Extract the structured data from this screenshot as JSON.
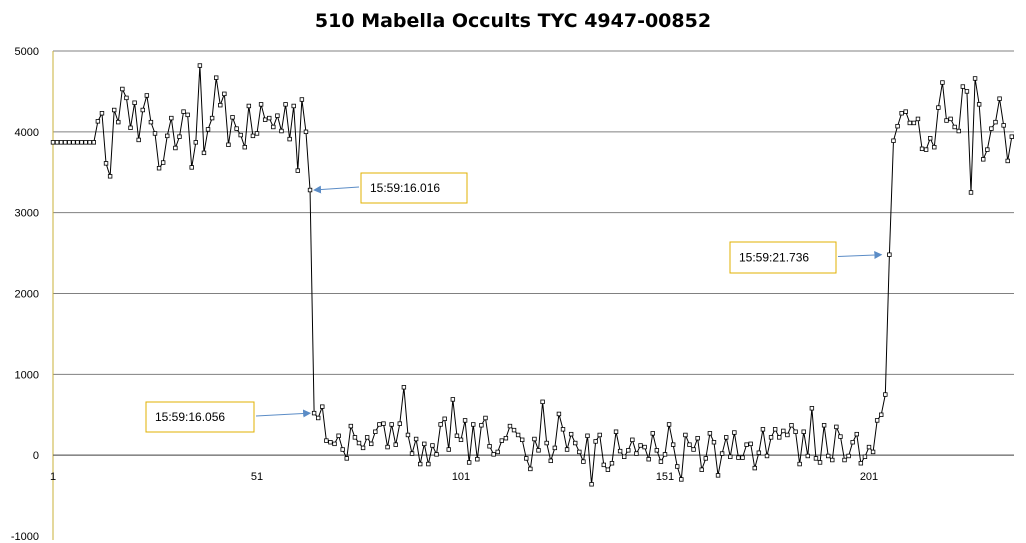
{
  "chart_data": {
    "type": "line",
    "title": "510 Mabella Occults TYC 4947-00852",
    "xlabel": "",
    "ylabel": "",
    "xlim": [
      1,
      236
    ],
    "ylim": [
      -1000,
      5000
    ],
    "xticks": [
      1,
      51,
      101,
      151,
      201
    ],
    "xtick_labels": [
      "1",
      "51",
      "101",
      "151",
      "201"
    ],
    "yticks": [
      -1000,
      0,
      1000,
      2000,
      3000,
      4000,
      5000
    ],
    "ytick_labels": [
      "-1000",
      "0",
      "1000",
      "2000",
      "3000",
      "4000",
      "5000"
    ],
    "grid": "horizontal",
    "colors": {
      "line": "#000000",
      "gridline": "#808080",
      "axis": "#c9b03a",
      "callout_border": "#e0b000",
      "arrow": "#5b8cc6"
    },
    "series": [
      {
        "x": [
          1,
          2,
          3,
          4,
          5,
          6,
          7,
          8,
          9,
          10,
          11,
          12,
          13,
          14,
          15,
          16,
          17,
          18,
          19,
          20,
          21,
          22,
          23,
          24,
          25,
          26,
          27,
          28,
          29,
          30,
          31,
          32,
          33,
          34,
          35,
          36,
          37,
          38,
          39,
          40,
          41,
          42,
          43,
          44,
          45,
          46,
          47,
          48,
          49,
          50,
          51,
          52,
          53,
          54,
          55,
          56,
          57,
          58,
          59,
          60,
          61,
          62,
          63,
          64,
          65,
          66,
          67,
          68,
          69,
          70,
          71,
          72,
          73,
          74,
          75,
          76,
          77,
          78,
          79,
          80,
          81,
          82,
          83,
          84,
          85,
          86,
          87,
          88,
          89,
          90,
          91,
          92,
          93,
          94,
          95,
          96,
          97,
          98,
          99,
          100,
          101,
          102,
          103,
          104,
          105,
          106,
          107,
          108,
          109,
          110,
          111,
          112,
          113,
          114,
          115,
          116,
          117,
          118,
          119,
          120,
          121,
          122,
          123,
          124,
          125,
          126,
          127,
          128,
          129,
          130,
          131,
          132,
          133,
          134,
          135,
          136,
          137,
          138,
          139,
          140,
          141,
          142,
          143,
          144,
          145,
          146,
          147,
          148,
          149,
          150,
          151,
          152,
          153,
          154,
          155,
          156,
          157,
          158,
          159,
          160,
          161,
          162,
          163,
          164,
          165,
          166,
          167,
          168,
          169,
          170,
          171,
          172,
          173,
          174,
          175,
          176,
          177,
          178,
          179,
          180,
          181,
          182,
          183,
          184,
          185,
          186,
          187,
          188,
          189,
          190,
          191,
          192,
          193,
          194,
          195,
          196,
          197,
          198,
          199,
          200,
          201,
          202,
          203,
          204,
          205,
          206,
          207,
          208,
          209,
          210,
          211,
          212,
          213,
          214,
          215,
          216,
          217,
          218,
          219,
          220,
          221,
          222,
          223,
          224,
          225,
          226,
          227,
          228,
          229,
          230,
          231,
          232,
          233,
          234,
          235,
          236
        ],
        "y": [
          3870,
          3870,
          3870,
          3870,
          3870,
          3870,
          3870,
          3870,
          3870,
          3870,
          3870,
          4130,
          4230,
          3610,
          3450,
          4270,
          4120,
          4530,
          4420,
          4050,
          4360,
          3900,
          4270,
          4450,
          4120,
          3980,
          3550,
          3620,
          3950,
          4170,
          3800,
          3940,
          4250,
          4210,
          3560,
          3870,
          4820,
          3740,
          4030,
          4170,
          4670,
          4330,
          4470,
          3840,
          4180,
          4040,
          3960,
          3810,
          4320,
          3950,
          3980,
          4340,
          4150,
          4170,
          4060,
          4200,
          4010,
          4340,
          3910,
          4320,
          3520,
          4400,
          4000,
          3280,
          520,
          460,
          600,
          180,
          160,
          140,
          240,
          70,
          -40,
          360,
          220,
          150,
          90,
          220,
          140,
          290,
          380,
          390,
          100,
          380,
          130,
          390,
          840,
          250,
          20,
          200,
          -110,
          140,
          -110,
          120,
          10,
          380,
          450,
          70,
          690,
          240,
          190,
          430,
          -90,
          380,
          -50,
          370,
          460,
          110,
          10,
          40,
          180,
          210,
          360,
          310,
          250,
          190,
          -40,
          -170,
          200,
          60,
          660,
          150,
          -70,
          90,
          510,
          320,
          70,
          260,
          150,
          40,
          -80,
          240,
          -360,
          170,
          250,
          -120,
          -180,
          -100,
          290,
          50,
          -20,
          60,
          190,
          20,
          120,
          100,
          -50,
          270,
          60,
          -80,
          10,
          380,
          130,
          -140,
          -300,
          250,
          130,
          70,
          210,
          -180,
          -40,
          270,
          160,
          -250,
          20,
          220,
          -20,
          280,
          -30,
          -30,
          130,
          140,
          -160,
          30,
          320,
          -10,
          220,
          320,
          220,
          300,
          250,
          370,
          290,
          -110,
          290,
          -10,
          580,
          -40,
          -90,
          370,
          -10,
          -60,
          350,
          230,
          -60,
          -10,
          160,
          260,
          -100,
          -20,
          100,
          40,
          430,
          500,
          750,
          2480,
          3890,
          4070,
          4230,
          4250,
          4110,
          4110,
          4160,
          3790,
          3780,
          3920,
          3810,
          4300,
          4610,
          4140,
          4160,
          4060,
          4010,
          4560,
          4500,
          3250,
          4660,
          4340,
          3660,
          3780,
          4040,
          4120,
          4410,
          4080,
          3640,
          3940
        ]
      }
    ],
    "annotations": [
      {
        "label": "15:59:16.016",
        "x": 64,
        "y": 3280
      },
      {
        "label": "15:59:16.056",
        "x": 65,
        "y": 520
      },
      {
        "label": "15:59:21.736",
        "x": 205,
        "y": 2480
      }
    ]
  }
}
